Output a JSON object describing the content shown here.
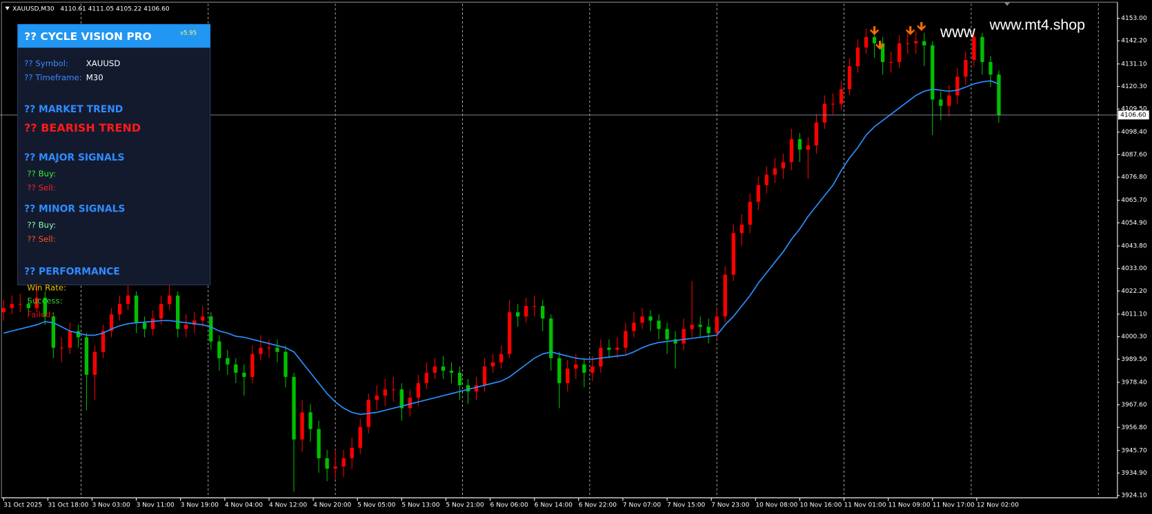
{
  "header": {
    "symbol": "XAUUSD,M30",
    "ohlc": "4110.61 4111.05 4105.22 4106.60"
  },
  "watermark": {
    "short": "www",
    "site": "www.mt4.shop"
  },
  "panel": {
    "title": "?? CYCLE VISION PRO",
    "version": "v5.95",
    "symbol_label": "?? Symbol:",
    "symbol_value": "XAUUSD",
    "timeframe_label": "?? Timeframe:",
    "timeframe_value": "M30",
    "market_trend": "?? MARKET TREND",
    "trend": "?? BEARISH TREND",
    "major_signals": "?? MAJOR SIGNALS",
    "major_buy": "?? Buy:",
    "major_sell": "?? Sell:",
    "minor_signals": "?? MINOR SIGNALS",
    "minor_buy": "?? Buy:",
    "minor_sell": "?? Sell:",
    "performance": "?? PERFORMANCE",
    "win_rate": "Win Rate:",
    "success": "Success:",
    "failed": "Failed:"
  },
  "chart_data": {
    "type": "candlestick",
    "up_color": "#ff0000",
    "down_color": "#00c000",
    "x": [
      0,
      3,
      6,
      9,
      12,
      15,
      18,
      21,
      24,
      27,
      30,
      33,
      36,
      39,
      42,
      45,
      48,
      51,
      54,
      57,
      60,
      63,
      66,
      69,
      72,
      75,
      78,
      81,
      84,
      87,
      90,
      93,
      96,
      99,
      102,
      105,
      108,
      111,
      114,
      117,
      120,
      123,
      126,
      129,
      132,
      135,
      138,
      141,
      144,
      147,
      150,
      153,
      156,
      159,
      162,
      165,
      168,
      171,
      174,
      177,
      180,
      183,
      186,
      189,
      192,
      195,
      198,
      201,
      204,
      207,
      210,
      213,
      216,
      219,
      222,
      225,
      228,
      231,
      234,
      237,
      240,
      243,
      246,
      249,
      252,
      255,
      258,
      261,
      264,
      267,
      270,
      273,
      276,
      279,
      282,
      285,
      288,
      291,
      294,
      297,
      300,
      303,
      306,
      309,
      312,
      315,
      318,
      321,
      324,
      327,
      330,
      333,
      336,
      339,
      342,
      345,
      348,
      351,
      354,
      357,
      360
    ],
    "open": [
      4012,
      4014,
      4016,
      4016,
      4014,
      4019,
      4010,
      3995,
      3995,
      4003,
      4000,
      3982,
      3993,
      4003,
      4011,
      4016,
      4020,
      4007,
      4004,
      4009,
      4016,
      4020,
      4004,
      4006,
      4008,
      4010,
      3998,
      3990,
      3987,
      3983,
      3981,
      3992,
      3995,
      3995,
      3993,
      3981,
      3951,
      3964,
      3956,
      3942,
      3937,
      3938,
      3942,
      3947,
      3957,
      3970,
      3972,
      3975,
      3975,
      3966,
      3971,
      3978,
      3983,
      3986,
      3984,
      3983,
      3977,
      3974,
      3977,
      3986,
      3988,
      3992,
      4012,
      4010,
      4015,
      4015,
      4009,
      3990,
      3978,
      3985,
      3987,
      3983,
      3986,
      3995,
      3994,
      3995,
      4003,
      4007,
      4010,
      4008,
      4004,
      3999,
      3997,
      4004,
      4006,
      4005,
      4002,
      4010,
      4030,
      4050,
      4054,
      4065,
      4073,
      4078,
      4081,
      4084,
      4095,
      4090,
      4092,
      4103,
      4112,
      4112,
      4119,
      4130,
      4139,
      4144,
      4141,
      4132,
      4132,
      4141,
      4141,
      4142,
      4140,
      4114,
      4111,
      4116,
      4125,
      4133,
      4144,
      4132,
      4126
    ],
    "high": [
      4018,
      4020,
      4021,
      4019,
      4028,
      4022,
      4012,
      4000,
      4007,
      4006,
      4002,
      3996,
      4006,
      4014,
      4020,
      4028,
      4022,
      4010,
      4013,
      4020,
      4029,
      4022,
      4011,
      4012,
      4015,
      4012,
      4001,
      3994,
      3990,
      3987,
      3996,
      4001,
      3999,
      3999,
      3996,
      3983,
      3970,
      3968,
      3960,
      3946,
      3946,
      3946,
      3952,
      3961,
      3973,
      3977,
      3980,
      3981,
      3978,
      3975,
      3982,
      3988,
      3990,
      3991,
      3988,
      3986,
      3980,
      3981,
      3990,
      3992,
      3996,
      4018,
      4016,
      4019,
      4020,
      4018,
      4011,
      3993,
      3989,
      3992,
      3990,
      3991,
      3999,
      3999,
      4000,
      4007,
      4012,
      4014,
      4013,
      4011,
      4007,
      4003,
      4009,
      4027,
      4010,
      4009,
      4014,
      4034,
      4054,
      4059,
      4069,
      4077,
      4082,
      4086,
      4088,
      4100,
      4098,
      4096,
      4107,
      4116,
      4117,
      4123,
      4134,
      4143,
      4148,
      4147,
      4144,
      4137,
      4145,
      4146,
      4147,
      4146,
      4142,
      4118,
      4121,
      4129,
      4137,
      4148,
      4146,
      4135,
      4128
    ],
    "low": [
      4008,
      4011,
      4012,
      4010,
      4012,
      4006,
      3990,
      3988,
      3992,
      3995,
      3965,
      3970,
      3990,
      4000,
      4008,
      4013,
      4002,
      4000,
      4001,
      4006,
      4013,
      4000,
      4000,
      4002,
      4005,
      3994,
      3984,
      3982,
      3978,
      3972,
      3978,
      3989,
      3990,
      3988,
      3976,
      3926,
      3945,
      3950,
      3935,
      3931,
      3932,
      3933,
      3937,
      3944,
      3954,
      3965,
      3967,
      3969,
      3960,
      3962,
      3967,
      3975,
      3980,
      3980,
      3978,
      3970,
      3968,
      3970,
      3974,
      3983,
      3985,
      3990,
      4005,
      4007,
      4010,
      4003,
      3984,
      3966,
      3974,
      3980,
      3976,
      3979,
      3983,
      3990,
      3990,
      3992,
      4000,
      4004,
      4003,
      3999,
      3992,
      3985,
      3994,
      4000,
      4000,
      3997,
      3999,
      4007,
      4027,
      4044,
      4050,
      4061,
      4069,
      4074,
      4076,
      4080,
      4084,
      4076,
      4088,
      4100,
      4107,
      4109,
      4116,
      4127,
      4136,
      4134,
      4126,
      4127,
      4129,
      4136,
      4136,
      4130,
      4097,
      4104,
      4106,
      4112,
      4121,
      4130,
      4126,
      4120,
      4103
    ],
    "close": [
      4014,
      4016,
      4016,
      4014,
      4019,
      4010,
      3995,
      3995,
      4003,
      4000,
      3982,
      3993,
      4003,
      4011,
      4016,
      4020,
      4007,
      4004,
      4009,
      4016,
      4020,
      4004,
      4006,
      4008,
      4010,
      3998,
      3990,
      3987,
      3983,
      3981,
      3992,
      3995,
      3995,
      3993,
      3981,
      3951,
      3964,
      3956,
      3942,
      3937,
      3938,
      3942,
      3947,
      3957,
      3970,
      3972,
      3975,
      3975,
      3966,
      3971,
      3978,
      3983,
      3986,
      3984,
      3983,
      3977,
      3974,
      3977,
      3986,
      3988,
      3992,
      4012,
      4010,
      4015,
      4015,
      4009,
      3990,
      3978,
      3985,
      3987,
      3983,
      3986,
      3995,
      3994,
      3995,
      4003,
      4007,
      4010,
      4008,
      4004,
      3999,
      3997,
      4004,
      4006,
      4005,
      4002,
      4010,
      4030,
      4050,
      4054,
      4065,
      4073,
      4078,
      4081,
      4084,
      4095,
      4090,
      4092,
      4103,
      4112,
      4112,
      4119,
      4130,
      4139,
      4144,
      4141,
      4132,
      4132,
      4141,
      4141,
      4142,
      4140,
      4114,
      4111,
      4116,
      4125,
      4133,
      4144,
      4132,
      4126,
      4106.6
    ],
    "ma": {
      "color": "#2a8fff",
      "values": [
        4002,
        4003,
        4004,
        4005,
        4006,
        4007.5,
        4007,
        4005,
        4003,
        4002,
        4001,
        4001,
        4002,
        4004,
        4005.5,
        4006.5,
        4007,
        4007.3,
        4007.6,
        4008,
        4008,
        4007.5,
        4007,
        4006.5,
        4006,
        4005,
        4003,
        4002,
        4000.5,
        4000,
        3999,
        3998,
        3997,
        3996,
        3995,
        3993,
        3988,
        3983,
        3978,
        3973,
        3969,
        3966,
        3964,
        3963,
        3963.5,
        3964,
        3965,
        3966,
        3967,
        3968,
        3969,
        3970,
        3971,
        3972,
        3973,
        3974,
        3975,
        3976,
        3977,
        3978,
        3979,
        3981,
        3984,
        3987,
        3990,
        3992,
        3993,
        3992,
        3991,
        3990,
        3989.5,
        3989.5,
        3990,
        3990.5,
        3991,
        3991.5,
        3993,
        3995,
        3996.5,
        3997.5,
        3998,
        3998.5,
        3999,
        3999.5,
        4000,
        4000.5,
        4001,
        4006,
        4010,
        4015,
        4020,
        4026,
        4031,
        4036,
        4041,
        4047,
        4052,
        4058,
        4063,
        4068,
        4073,
        4080,
        4086,
        4091,
        4097,
        4101,
        4104,
        4107,
        4110,
        4113,
        4116,
        4118,
        4119,
        4118.5,
        4118,
        4118.5,
        4120,
        4121.5,
        4122.5,
        4123,
        4121.5
      ]
    },
    "signals": {
      "color": "#ff6a00",
      "x": [
        315,
        317,
        328,
        332
      ],
      "y": [
        4146,
        4139,
        4146,
        4148
      ]
    },
    "current_price": {
      "value": 4106.6,
      "label": "4106.60"
    },
    "separators": [
      28,
      74,
      120,
      166,
      212,
      258,
      304,
      350,
      396
    ],
    "xlim": [
      -1.3,
      402.9
    ],
    "ylim": [
      3923,
      4160
    ],
    "xticks": [
      {
        "value": 0,
        "label": "31 Oct 2025"
      },
      {
        "value": 16,
        "label": "31 Oct 18:00"
      },
      {
        "value": 32,
        "label": "3 Nov 03:00"
      },
      {
        "value": 48,
        "label": "3 Nov 11:00"
      },
      {
        "value": 64,
        "label": "3 Nov 19:00"
      },
      {
        "value": 80,
        "label": "4 Nov 04:00"
      },
      {
        "value": 96,
        "label": "4 Nov 12:00"
      },
      {
        "value": 112,
        "label": "4 Nov 20:00"
      },
      {
        "value": 128,
        "label": "5 Nov 05:00"
      },
      {
        "value": 144,
        "label": "5 Nov 13:00"
      },
      {
        "value": 160,
        "label": "5 Nov 21:00"
      },
      {
        "value": 176,
        "label": "6 Nov 06:00"
      },
      {
        "value": 192,
        "label": "6 Nov 14:00"
      },
      {
        "value": 208,
        "label": "6 Nov 22:00"
      },
      {
        "value": 224,
        "label": "7 Nov 07:00"
      },
      {
        "value": 240,
        "label": "7 Nov 15:00"
      },
      {
        "value": 256,
        "label": "7 Nov 23:00"
      },
      {
        "value": 272,
        "label": "10 Nov 08:00"
      },
      {
        "value": 288,
        "label": "10 Nov 16:00"
      },
      {
        "value": 304,
        "label": "11 Nov 01:00"
      },
      {
        "value": 320,
        "label": "11 Nov 09:00"
      },
      {
        "value": 336,
        "label": "11 Nov 17:00"
      },
      {
        "value": 352,
        "label": "12 Nov 02:00"
      }
    ],
    "yticks": [
      {
        "value": 4153,
        "label": "4153.00"
      },
      {
        "value": 4142.2,
        "label": "4142.20"
      },
      {
        "value": 4131.1,
        "label": "4131.10"
      },
      {
        "value": 4120.3,
        "label": "4120.30"
      },
      {
        "value": 4109.5,
        "label": "4109.50"
      },
      {
        "value": 4098.4,
        "label": "4098.40"
      },
      {
        "value": 4087.6,
        "label": "4087.60"
      },
      {
        "value": 4076.8,
        "label": "4076.80"
      },
      {
        "value": 4065.7,
        "label": "4065.70"
      },
      {
        "value": 4054.9,
        "label": "4054.90"
      },
      {
        "value": 4043.8,
        "label": "4043.80"
      },
      {
        "value": 4033,
        "label": "4033.00"
      },
      {
        "value": 4022.2,
        "label": "4022.20"
      },
      {
        "value": 4011.1,
        "label": "4011.10"
      },
      {
        "value": 4000.3,
        "label": "4000.30"
      },
      {
        "value": 3989.5,
        "label": "3989.50"
      },
      {
        "value": 3978.4,
        "label": "3978.40"
      },
      {
        "value": 3967.6,
        "label": "3967.60"
      },
      {
        "value": 3956.8,
        "label": "3956.80"
      },
      {
        "value": 3945.7,
        "label": "3945.70"
      },
      {
        "value": 3934.9,
        "label": "3934.90"
      },
      {
        "value": 3924.1,
        "label": "3924.10"
      }
    ]
  }
}
